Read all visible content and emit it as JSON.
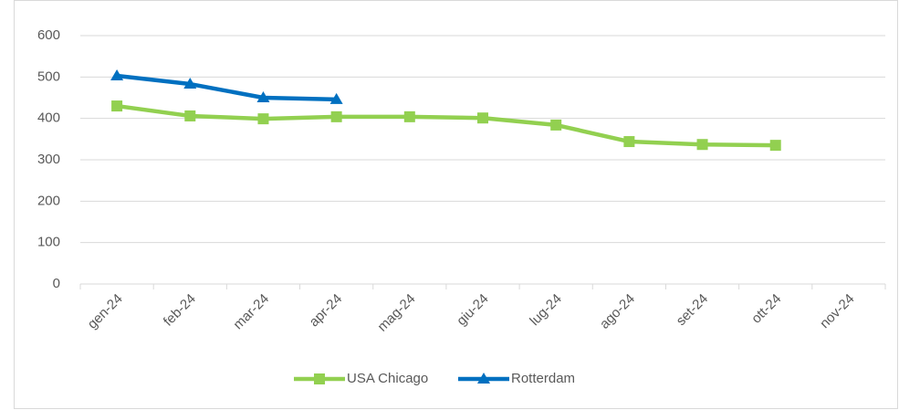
{
  "chart_data": {
    "type": "line",
    "categories": [
      "gen-24",
      "feb-24",
      "mar-24",
      "apr-24",
      "mag-24",
      "giu-24",
      "lug-24",
      "ago-24",
      "set-24",
      "ott-24",
      "nov-24"
    ],
    "series": [
      {
        "name": "USA Chicago",
        "color": "#92d050",
        "marker": "square",
        "values": [
          430,
          406,
          399,
          404,
          404,
          401,
          384,
          344,
          337,
          335,
          null
        ]
      },
      {
        "name": "Rotterdam",
        "color": "#0070c0",
        "marker": "triangle",
        "values": [
          503,
          483,
          450,
          446,
          null,
          null,
          null,
          null,
          null,
          null,
          null
        ]
      }
    ],
    "ylim": [
      0,
      600
    ],
    "yticks": [
      0,
      100,
      200,
      300,
      400,
      500,
      600
    ],
    "grid": true,
    "legend": "bottom"
  }
}
